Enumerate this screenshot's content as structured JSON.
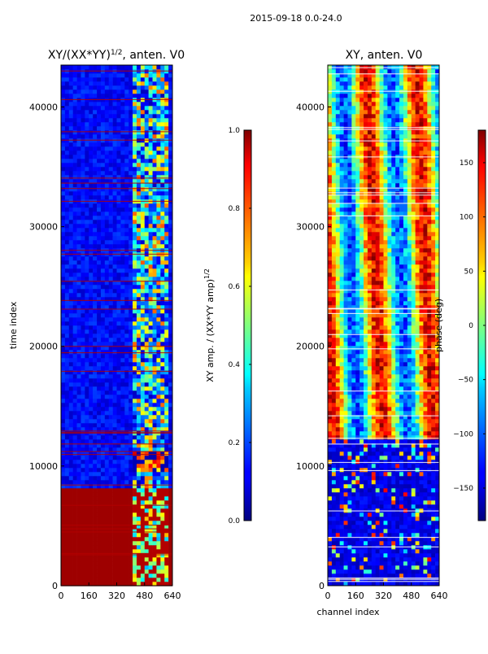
{
  "suptitle": "2015-09-18 0.0-24.0",
  "chart_data": [
    {
      "type": "heatmap",
      "panel": "left",
      "title_main": "XY/(XX*YY)",
      "title_sup": "1/2",
      "title_rest": ", anten. V0",
      "xlabel": "",
      "ylabel": "time index",
      "xlim": [
        0,
        640
      ],
      "ylim": [
        0,
        43500
      ],
      "xticks": [
        0,
        160,
        320,
        480,
        640
      ],
      "yticks": [
        0,
        10000,
        20000,
        30000,
        40000
      ],
      "colorbar": {
        "label_main": "XY amp. / (XX*YY amp)",
        "label_sup": "1/2",
        "range": [
          0.0,
          1.0
        ],
        "ticks": [
          0.0,
          0.2,
          0.4,
          0.6,
          0.8,
          1.0
        ],
        "tick_labels": [
          "0.0",
          "0.2",
          "0.4",
          "0.6",
          "0.8",
          "1.0"
        ],
        "colormap": "jet"
      }
    },
    {
      "type": "heatmap",
      "panel": "right",
      "title_main": "XY, anten. V0",
      "xlabel": "channel index",
      "ylabel": "",
      "xlim": [
        0,
        640
      ],
      "ylim": [
        0,
        43500
      ],
      "xticks": [
        0,
        160,
        320,
        480,
        640
      ],
      "yticks": [
        0,
        10000,
        20000,
        30000,
        40000
      ],
      "colorbar": {
        "label_main": "phase (deg)",
        "range": [
          -180,
          180
        ],
        "ticks": [
          -150,
          -100,
          -50,
          0,
          50,
          100,
          150
        ],
        "tick_labels": [
          "−150",
          "−100",
          "−50",
          "0",
          "50",
          "100",
          "150"
        ],
        "colormap": "jet"
      }
    }
  ]
}
